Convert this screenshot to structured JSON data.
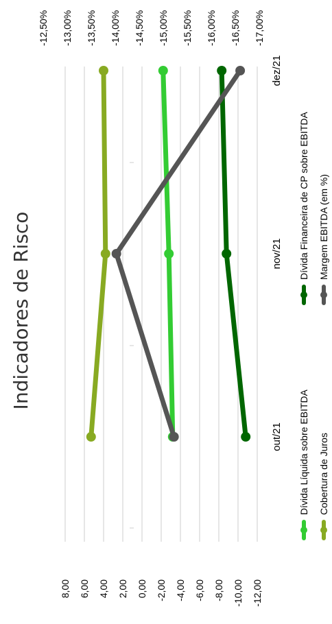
{
  "chart_data": {
    "type": "line",
    "title": "Indicadores de Risco",
    "categories": [
      "out/21",
      "nov/21",
      "dez/21"
    ],
    "left_axis": {
      "ticks": [
        "8,00",
        "6,00",
        "4,00",
        "2,00",
        "0,00",
        "-2,00",
        "-4,00",
        "-6,00",
        "-8,00",
        "-10,00",
        "-12,00"
      ],
      "range": [
        8,
        -12
      ]
    },
    "right_axis": {
      "ticks": [
        "-12,50%",
        "-13,00%",
        "-13,50%",
        "-14,00%",
        "-14,50%",
        "-15,00%",
        "-15,50%",
        "-16,00%",
        "-16,50%",
        "-17,00%"
      ],
      "range": [
        -12.5,
        -17.0
      ]
    },
    "series": [
      {
        "name": "Dívida Líquida sobre EBITDA",
        "color": "#33cc33",
        "axis": "left",
        "values": [
          -3.2,
          -2.8,
          -2.2
        ]
      },
      {
        "name": "Dívida Financeira de CP sobre EBITDA",
        "color": "#006600",
        "axis": "left",
        "values": [
          -10.8,
          -8.8,
          -8.3
        ]
      },
      {
        "name": "Cobertura de Juros",
        "color": "#88aa22",
        "axis": "left",
        "values": [
          5.3,
          3.8,
          4.0
        ]
      },
      {
        "name": "Margem EBITDA (em %)",
        "color": "#555555",
        "axis": "right",
        "values": [
          -15.05,
          -13.7,
          -16.6
        ]
      }
    ],
    "legend_position": "bottom",
    "grid": true
  }
}
